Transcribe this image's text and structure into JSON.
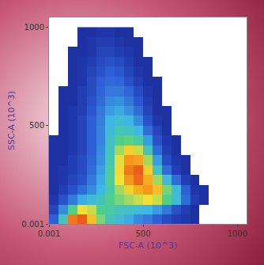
{
  "chart_data": {
    "type": "heatmap",
    "x_label": "FSC-A (10^3)",
    "y_label": "SSC-A (10^3)",
    "xlim": [
      0,
      1050
    ],
    "ylim": [
      0,
      1050
    ],
    "xticks": [
      0.001,
      500,
      1000
    ],
    "yticks": [
      0.001,
      500,
      1000
    ],
    "grid": false,
    "zlim": [
      0,
      100
    ],
    "x": [
      25,
      75,
      125,
      175,
      225,
      275,
      325,
      375,
      425,
      475,
      525,
      575,
      625,
      675,
      725,
      775,
      825,
      875,
      925,
      975
    ],
    "y": [
      25,
      75,
      125,
      175,
      225,
      275,
      325,
      375,
      425,
      475,
      525,
      575,
      625,
      675,
      725,
      775,
      825,
      875,
      925,
      975
    ],
    "cells": [
      [
        8,
        30,
        85,
        90,
        70,
        45,
        30,
        25,
        20,
        15,
        12,
        8,
        5,
        3,
        2,
        1,
        null,
        null,
        null,
        null
      ],
      [
        4,
        15,
        40,
        60,
        55,
        40,
        35,
        30,
        28,
        25,
        22,
        18,
        12,
        6,
        3,
        1,
        null,
        null,
        null,
        null
      ],
      [
        2,
        6,
        12,
        20,
        25,
        30,
        40,
        45,
        50,
        55,
        60,
        55,
        40,
        25,
        10,
        3,
        1,
        null,
        null,
        null
      ],
      [
        1,
        3,
        6,
        10,
        15,
        22,
        35,
        50,
        65,
        75,
        80,
        70,
        45,
        25,
        8,
        2,
        1,
        null,
        null,
        null
      ],
      [
        1,
        2,
        4,
        6,
        12,
        20,
        38,
        60,
        80,
        88,
        75,
        50,
        25,
        10,
        3,
        1,
        null,
        null,
        null,
        null
      ],
      [
        1,
        2,
        3,
        5,
        10,
        18,
        35,
        62,
        85,
        90,
        65,
        30,
        10,
        3,
        1,
        null,
        null,
        null,
        null,
        null
      ],
      [
        1,
        1,
        3,
        5,
        9,
        16,
        32,
        58,
        80,
        78,
        50,
        18,
        5,
        2,
        1,
        null,
        null,
        null,
        null,
        null
      ],
      [
        1,
        1,
        2,
        4,
        8,
        15,
        30,
        50,
        65,
        55,
        30,
        10,
        3,
        1,
        null,
        null,
        null,
        null,
        null,
        null
      ],
      [
        1,
        1,
        2,
        4,
        8,
        14,
        28,
        40,
        42,
        35,
        18,
        6,
        2,
        1,
        null,
        null,
        null,
        null,
        null,
        null
      ],
      [
        null,
        1,
        2,
        4,
        8,
        14,
        25,
        32,
        30,
        22,
        10,
        4,
        1,
        null,
        null,
        null,
        null,
        null,
        null,
        null
      ],
      [
        null,
        1,
        2,
        4,
        8,
        13,
        22,
        26,
        22,
        15,
        6,
        2,
        1,
        null,
        null,
        null,
        null,
        null,
        null,
        null
      ],
      [
        null,
        1,
        2,
        3,
        7,
        12,
        18,
        20,
        16,
        10,
        4,
        1,
        1,
        null,
        null,
        null,
        null,
        null,
        null,
        null
      ],
      [
        null,
        1,
        1,
        3,
        6,
        10,
        15,
        16,
        12,
        7,
        3,
        1,
        null,
        null,
        null,
        null,
        null,
        null,
        null,
        null
      ],
      [
        null,
        1,
        1,
        3,
        5,
        9,
        12,
        12,
        9,
        5,
        2,
        1,
        null,
        null,
        null,
        null,
        null,
        null,
        null,
        null
      ],
      [
        null,
        null,
        1,
        2,
        5,
        8,
        10,
        9,
        6,
        3,
        1,
        1,
        null,
        null,
        null,
        null,
        null,
        null,
        null,
        null
      ],
      [
        null,
        null,
        1,
        2,
        4,
        6,
        8,
        7,
        4,
        2,
        1,
        null,
        null,
        null,
        null,
        null,
        null,
        null,
        null,
        null
      ],
      [
        null,
        null,
        1,
        2,
        3,
        5,
        6,
        5,
        3,
        1,
        1,
        null,
        null,
        null,
        null,
        null,
        null,
        null,
        null,
        null
      ],
      [
        null,
        null,
        1,
        1,
        2,
        4,
        4,
        3,
        2,
        1,
        null,
        null,
        null,
        null,
        null,
        null,
        null,
        null,
        null,
        null
      ],
      [
        null,
        null,
        null,
        1,
        2,
        3,
        3,
        2,
        1,
        1,
        null,
        null,
        null,
        null,
        null,
        null,
        null,
        null,
        null,
        null
      ],
      [
        null,
        null,
        null,
        1,
        1,
        2,
        2,
        1,
        1,
        null,
        null,
        null,
        null,
        null,
        null,
        null,
        null,
        null,
        null,
        null
      ]
    ]
  }
}
